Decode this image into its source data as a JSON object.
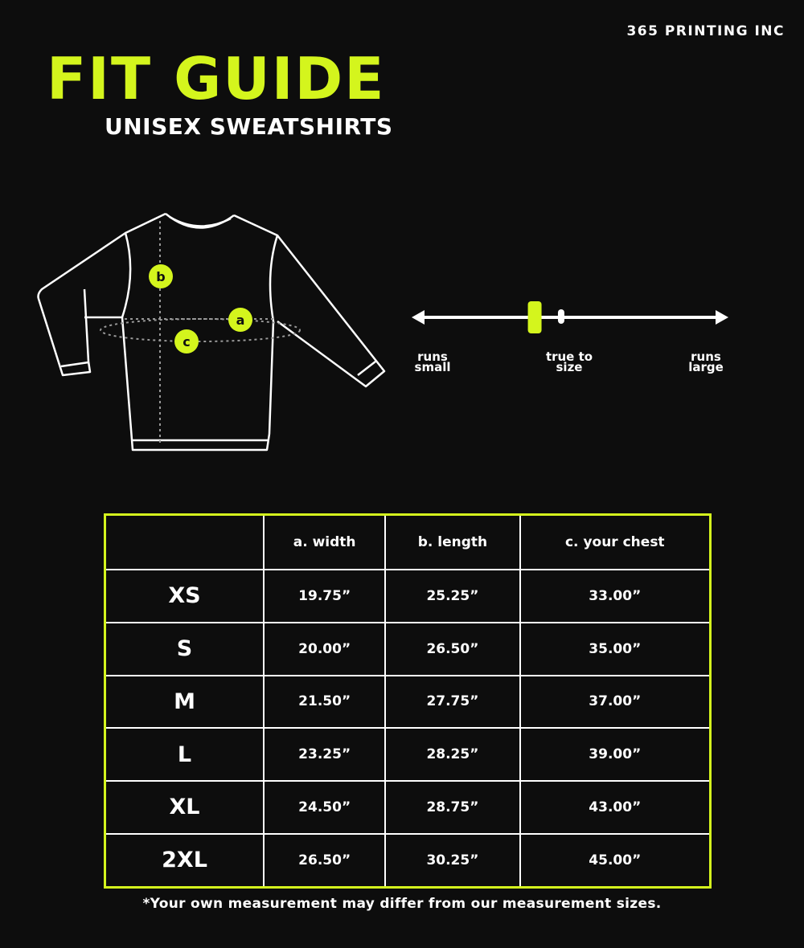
{
  "brand": "365 PRINTING INC",
  "title": "FIT GUIDE",
  "subtitle": "UNISEX SWEATSHIRTS",
  "colors": {
    "accent": "#d4f51d",
    "background": "#0d0d0d",
    "text": "#ffffff"
  },
  "diagram": {
    "markers": [
      "b",
      "a",
      "c"
    ]
  },
  "fit_scale": {
    "left_label": [
      "runs",
      "small"
    ],
    "center_label": [
      "true to",
      "size"
    ],
    "right_label": [
      "runs",
      "large"
    ],
    "indicator_position": 0.38,
    "true_to_size_position": 0.465
  },
  "table": {
    "headers": [
      "",
      "a. width",
      "b. length",
      "c. your chest"
    ],
    "rows": [
      [
        "XS",
        "19.75”",
        "25.25”",
        "33.00”"
      ],
      [
        "S",
        "20.00”",
        "26.50”",
        "35.00”"
      ],
      [
        "M",
        "21.50”",
        "27.75”",
        "37.00”"
      ],
      [
        "L",
        "23.25”",
        "28.25”",
        "39.00”"
      ],
      [
        "XL",
        "24.50”",
        "28.75”",
        "43.00”"
      ],
      [
        "2XL",
        "26.50”",
        "30.25”",
        "45.00”"
      ]
    ]
  },
  "note": "*Your own measurement may differ from our measurement sizes."
}
